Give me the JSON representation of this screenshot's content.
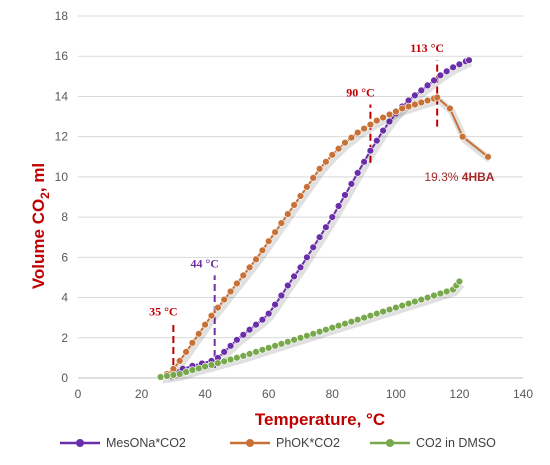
{
  "chart_data": {
    "type": "line",
    "title": "",
    "xlabel": "Temperature, °C",
    "ylabel_main": "Volume CO",
    "ylabel_sub": "2",
    "ylabel_tail": ", ml",
    "xlim": [
      0,
      140
    ],
    "ylim": [
      0,
      18
    ],
    "xticks": [
      0,
      20,
      40,
      60,
      80,
      100,
      120,
      140
    ],
    "yticks": [
      0,
      2,
      4,
      6,
      8,
      10,
      12,
      14,
      16,
      18
    ],
    "grid": "horizontal",
    "legend": "bottom",
    "series": [
      {
        "name": "MesONa*CO2",
        "color": "#6a2fa8",
        "marker": "dot",
        "x": [
          28,
          30,
          33,
          36,
          39,
          42,
          44,
          46,
          48,
          50,
          52,
          54,
          56,
          58,
          60,
          62,
          64,
          66,
          68,
          70,
          72,
          74,
          76,
          78,
          80,
          82,
          84,
          86,
          88,
          90,
          92,
          94,
          96,
          98,
          100,
          102,
          104,
          106,
          108,
          110,
          112,
          114,
          116,
          118,
          120,
          122,
          123
        ],
        "y": [
          0.15,
          0.3,
          0.45,
          0.6,
          0.72,
          0.85,
          1.0,
          1.3,
          1.6,
          1.9,
          2.15,
          2.4,
          2.65,
          2.9,
          3.2,
          3.65,
          4.1,
          4.6,
          5.05,
          5.5,
          6.0,
          6.5,
          7.0,
          7.5,
          8.0,
          8.55,
          9.1,
          9.65,
          10.2,
          10.75,
          11.3,
          11.8,
          12.3,
          12.75,
          13.15,
          13.5,
          13.8,
          14.05,
          14.3,
          14.55,
          14.8,
          15.05,
          15.25,
          15.45,
          15.6,
          15.75,
          15.8
        ]
      },
      {
        "name": "PhOK*CO2",
        "color": "#c87137",
        "marker": "dot",
        "x": [
          28,
          30,
          32,
          34,
          36,
          38,
          40,
          42,
          44,
          46,
          48,
          50,
          52,
          54,
          56,
          58,
          60,
          62,
          64,
          66,
          68,
          70,
          72,
          74,
          76,
          78,
          80,
          82,
          84,
          86,
          88,
          90,
          92,
          94,
          96,
          98,
          100,
          102,
          104,
          106,
          108,
          110,
          112,
          113,
          117,
          121,
          129
        ],
        "y": [
          0.2,
          0.45,
          0.85,
          1.3,
          1.75,
          2.2,
          2.65,
          3.1,
          3.5,
          3.9,
          4.3,
          4.7,
          5.1,
          5.5,
          5.9,
          6.35,
          6.8,
          7.25,
          7.7,
          8.15,
          8.6,
          9.05,
          9.5,
          9.95,
          10.4,
          10.75,
          11.1,
          11.4,
          11.7,
          11.95,
          12.2,
          12.4,
          12.6,
          12.8,
          12.95,
          13.1,
          13.25,
          13.4,
          13.5,
          13.6,
          13.7,
          13.8,
          13.9,
          13.95,
          13.4,
          12.0,
          11.0
        ]
      },
      {
        "name": "CO2 in DMSO",
        "color": "#78a84c",
        "marker": "dot",
        "x": [
          26,
          28,
          30,
          32,
          34,
          36,
          38,
          40,
          42,
          44,
          46,
          48,
          50,
          52,
          54,
          56,
          58,
          60,
          62,
          64,
          66,
          68,
          70,
          72,
          74,
          76,
          78,
          80,
          82,
          84,
          86,
          88,
          90,
          92,
          94,
          96,
          98,
          100,
          102,
          104,
          106,
          108,
          110,
          112,
          114,
          116,
          118,
          119,
          120
        ],
        "y": [
          0.05,
          0.1,
          0.15,
          0.2,
          0.3,
          0.4,
          0.48,
          0.57,
          0.65,
          0.74,
          0.83,
          0.92,
          1.01,
          1.1,
          1.2,
          1.3,
          1.4,
          1.5,
          1.6,
          1.7,
          1.8,
          1.9,
          2.0,
          2.1,
          2.2,
          2.3,
          2.4,
          2.5,
          2.6,
          2.7,
          2.8,
          2.9,
          3.0,
          3.1,
          3.2,
          3.3,
          3.4,
          3.5,
          3.6,
          3.7,
          3.8,
          3.9,
          4.0,
          4.1,
          4.2,
          4.3,
          4.4,
          4.6,
          4.8
        ]
      }
    ],
    "annotations": [
      {
        "id": "a35",
        "label": "35 °C",
        "x": 30,
        "y_from": 0.1,
        "y_to": 2.7,
        "color": "#c00000"
      },
      {
        "id": "a44",
        "label": "44 °C",
        "x": 43,
        "y_from": 0.5,
        "y_to": 5.1,
        "color": "#7030a0"
      },
      {
        "id": "a90",
        "label": "90 °C",
        "x": 92,
        "y_from": 10.7,
        "y_to": 13.6,
        "color": "#c00000"
      },
      {
        "id": "a113",
        "label": "113 °C",
        "x": 113,
        "y_from": 12.5,
        "y_to": 15.8,
        "color": "#c00000"
      }
    ],
    "hba_label": {
      "pct": "19.3%",
      "name": "4HBA",
      "x": 120,
      "y": 10.0
    }
  }
}
